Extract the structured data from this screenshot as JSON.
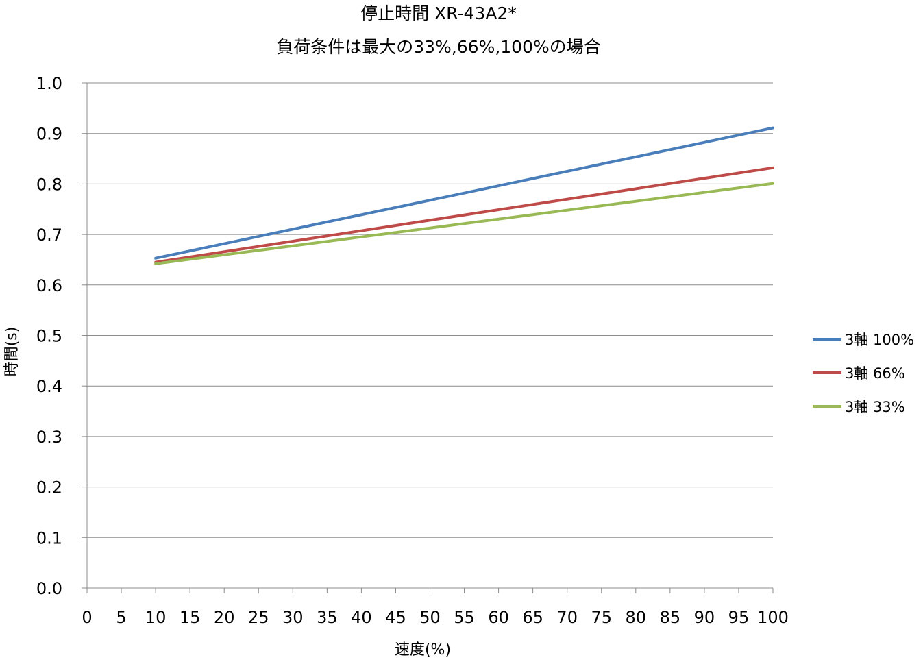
{
  "chart_data": {
    "type": "line",
    "title": "停止時間 XR-43A2*",
    "subtitle": "負荷条件は最大の33%,66%,100%の場合",
    "xlabel": "速度(%)",
    "ylabel": "時間(s)",
    "xlim": [
      0,
      100
    ],
    "ylim": [
      0.0,
      1.0
    ],
    "x_ticks": [
      "0",
      "5",
      "10",
      "15",
      "20",
      "25",
      "30",
      "35",
      "40",
      "45",
      "50",
      "55",
      "60",
      "65",
      "70",
      "75",
      "80",
      "85",
      "90",
      "95",
      "100"
    ],
    "y_ticks": [
      "0.0",
      "0.1",
      "0.2",
      "0.3",
      "0.4",
      "0.5",
      "0.6",
      "0.7",
      "0.8",
      "0.9",
      "1.0"
    ],
    "grid": "horizontal",
    "legend_position": "right",
    "series": [
      {
        "name": "3軸 100%",
        "color": "#4a7ebb",
        "x": [
          10,
          100
        ],
        "y": [
          0.653,
          0.911
        ]
      },
      {
        "name": "3軸 66%",
        "color": "#be4b48",
        "x": [
          10,
          100
        ],
        "y": [
          0.645,
          0.832
        ]
      },
      {
        "name": "3軸 33%",
        "color": "#98b954",
        "x": [
          10,
          100
        ],
        "y": [
          0.642,
          0.801
        ]
      }
    ]
  }
}
